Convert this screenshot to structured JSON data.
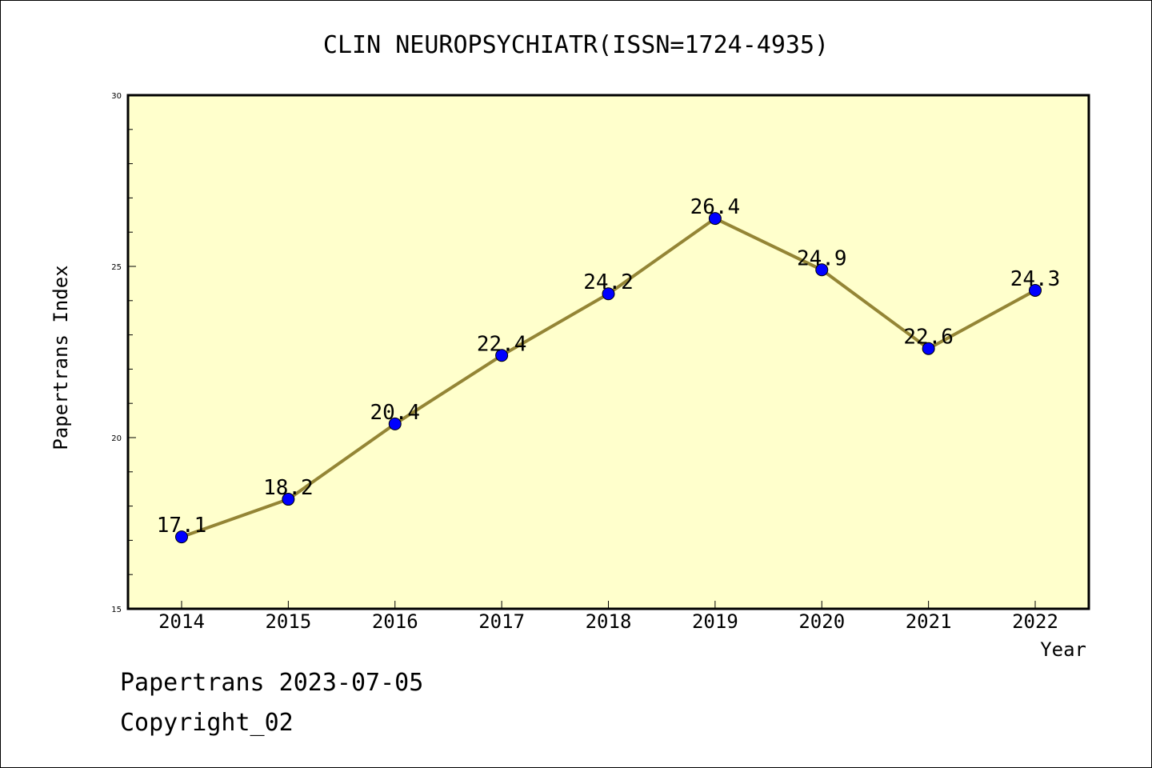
{
  "chart_data": {
    "type": "line",
    "title": "CLIN NEUROPSYCHIATR(ISSN=1724-4935)",
    "xlabel": "Year",
    "ylabel": "Papertrans Index",
    "categories": [
      "2014",
      "2015",
      "2016",
      "2017",
      "2018",
      "2019",
      "2020",
      "2021",
      "2022"
    ],
    "values": [
      17.1,
      18.2,
      20.4,
      22.4,
      24.2,
      26.4,
      24.9,
      22.6,
      24.3
    ],
    "data_labels": [
      "17.1",
      "18.2",
      "20.4",
      "22.4",
      "24.2",
      "26.4",
      "24.9",
      "22.6",
      "24.3"
    ],
    "ylim": [
      15,
      30
    ],
    "yticks": [
      "15",
      "20",
      "25",
      "30"
    ],
    "grid": false,
    "colors": {
      "plot_background": "#ffffcc",
      "line": "#948535",
      "marker": "#0000ff"
    }
  },
  "footer": {
    "line1": "Papertrans 2023-07-05",
    "line2": "Copyright_02"
  }
}
